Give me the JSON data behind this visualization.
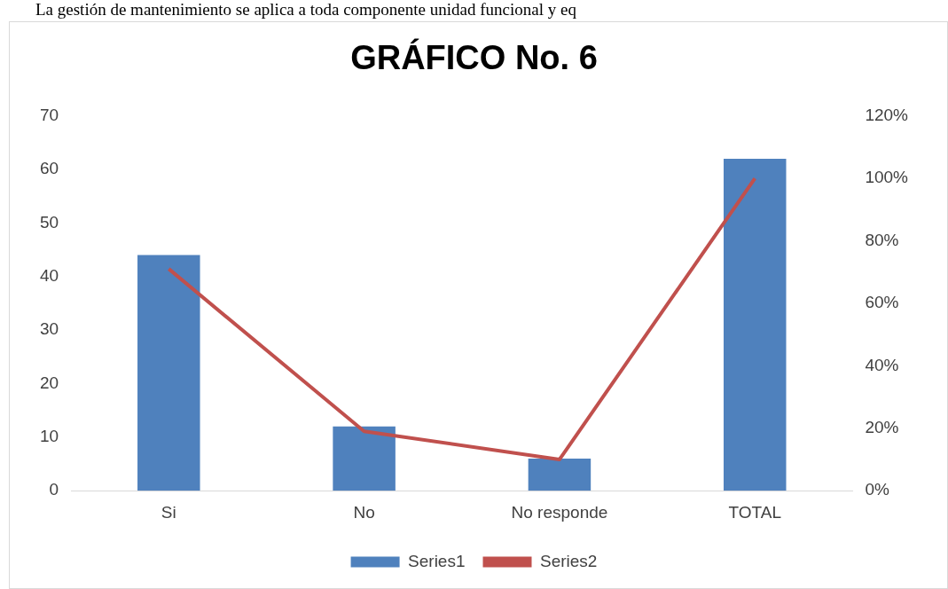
{
  "chart_data": {
    "type": "bar",
    "title": "GRÁFICO No. 6",
    "annotations": [
      "La gestión de mantenimiento se aplica a toda componente unidad funcional y eq"
    ],
    "categories": [
      "Si",
      "No",
      "No responde",
      "TOTAL"
    ],
    "series": [
      {
        "name": "Series1",
        "color": "#4f81bd",
        "values": [
          44,
          12,
          6,
          62
        ]
      },
      {
        "name": "Series2",
        "type": "line",
        "axis": "y2",
        "color": "#c0504d",
        "values": [
          71,
          19,
          10,
          100
        ]
      }
    ],
    "ylim": [
      0,
      70
    ],
    "yticks": [
      0,
      10,
      20,
      30,
      40,
      50,
      60,
      70
    ],
    "y2lim": [
      0,
      120
    ],
    "y2ticks": [
      {
        "value": 0,
        "label": "0%"
      },
      {
        "value": 20,
        "label": "20%"
      },
      {
        "value": 40,
        "label": "40%"
      },
      {
        "value": 60,
        "label": "60%"
      },
      {
        "value": 80,
        "label": "80%"
      },
      {
        "value": 100,
        "label": "100%"
      },
      {
        "value": 120,
        "label": "120%"
      }
    ],
    "grid": false,
    "legend": "bottom",
    "marker": "none",
    "line_style": "solid"
  }
}
